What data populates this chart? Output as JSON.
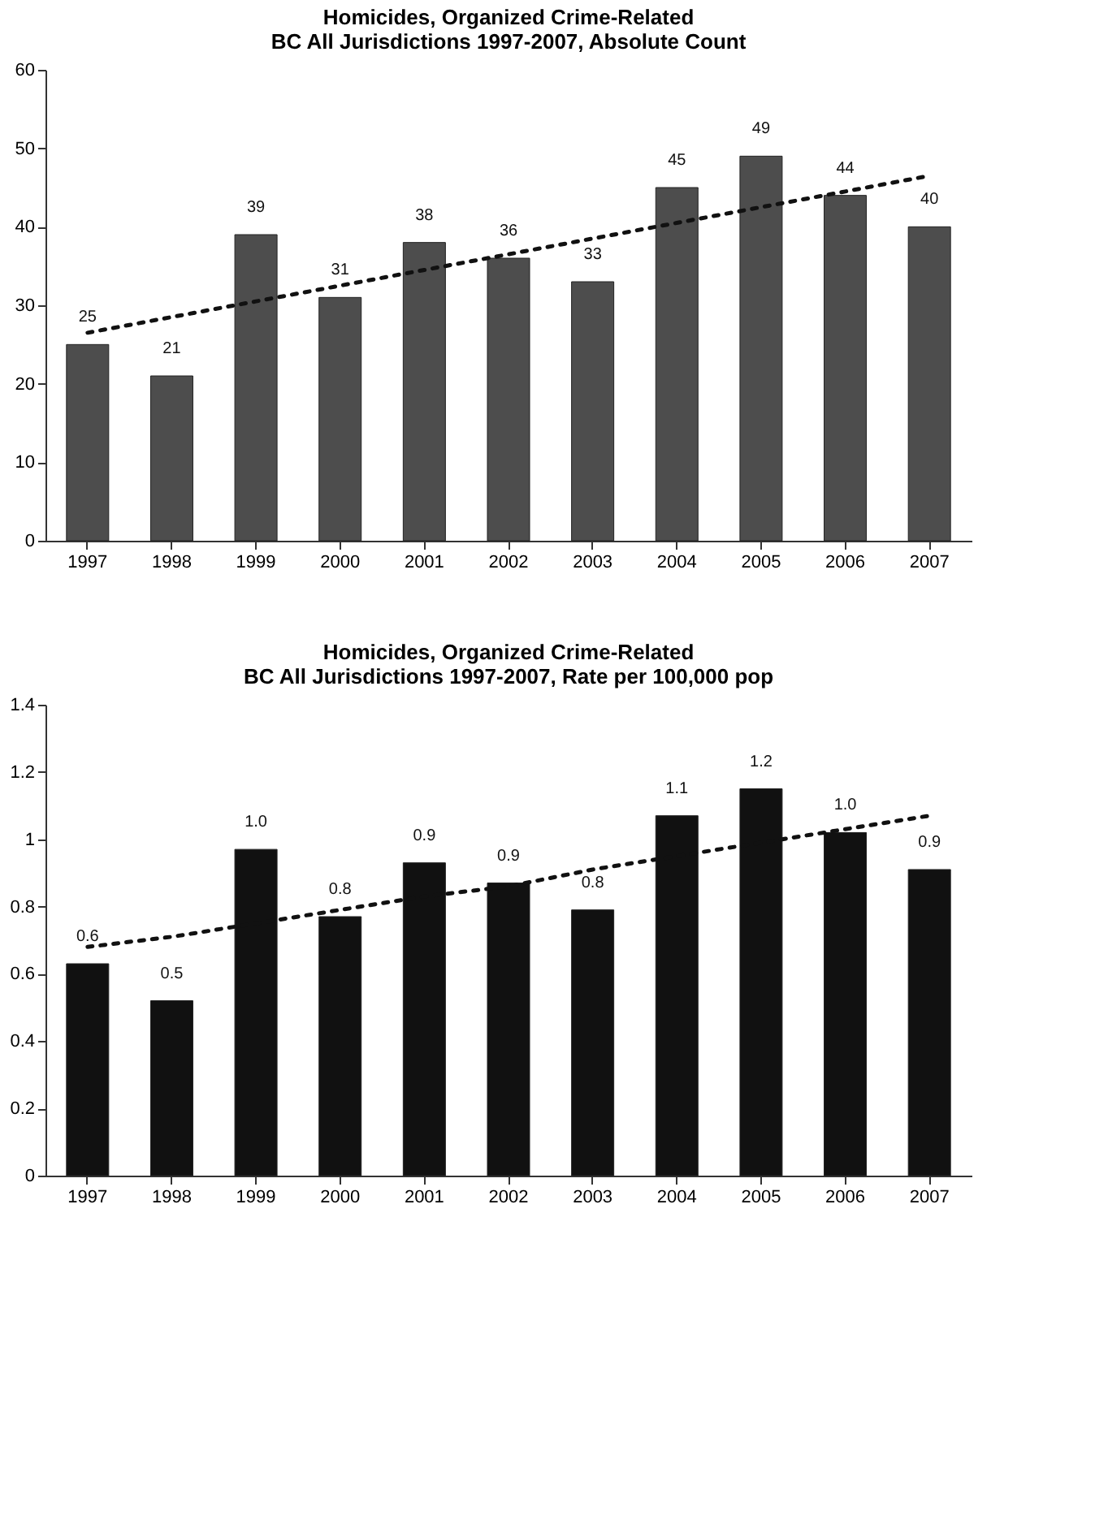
{
  "chart_data": [
    {
      "type": "bar",
      "title": [
        "Homicides, Organized Crime-Related",
        "BC All Jurisdictions 1997-2007, Absolute Count"
      ],
      "categories": [
        "1997",
        "1998",
        "1999",
        "2000",
        "2001",
        "2002",
        "2003",
        "2004",
        "2005",
        "2006",
        "2007"
      ],
      "ylim": [
        0,
        60
      ],
      "yticks": [
        0,
        10,
        20,
        30,
        40,
        50,
        60
      ],
      "series": [
        {
          "color": "#4d4d4d",
          "values": [
            25,
            21,
            39,
            31,
            38,
            36,
            33,
            45,
            49,
            44,
            40
          ],
          "data_labels": true
        },
        {
          "type": "line",
          "color": "#111111",
          "line_style": "dotted",
          "values": [
            26.5,
            28.5,
            30.5,
            32.5,
            34.5,
            36.5,
            38.5,
            40.5,
            42.5,
            44.5,
            46.5
          ]
        }
      ]
    },
    {
      "type": "bar",
      "title": [
        "Homicides, Organized Crime-Related",
        "BC All Jurisdictions 1997-2007, Rate per 100,000 pop"
      ],
      "categories": [
        "1997",
        "1998",
        "1999",
        "2000",
        "2001",
        "2002",
        "2003",
        "2004",
        "2005",
        "2006",
        "2007"
      ],
      "ylim": [
        0,
        1.4
      ],
      "yticks": [
        0,
        0.2,
        0.4,
        0.6,
        0.8,
        1,
        1.2,
        1.4
      ],
      "series": [
        {
          "color": "#111111",
          "values": [
            0.63,
            0.52,
            0.97,
            0.77,
            0.93,
            0.87,
            0.79,
            1.07,
            1.15,
            1.02,
            0.91
          ],
          "value_labels": [
            "0.6",
            "0.5",
            "1.0",
            "0.8",
            "0.9",
            "0.9",
            "0.8",
            "1.1",
            "1.2",
            "1.0",
            "0.9"
          ]
        },
        {
          "type": "line",
          "color": "#111111",
          "line_style": "dotted",
          "values": [
            0.68,
            0.71,
            0.75,
            0.79,
            0.83,
            0.86,
            0.91,
            0.95,
            0.99,
            1.03,
            1.07
          ]
        }
      ]
    }
  ]
}
